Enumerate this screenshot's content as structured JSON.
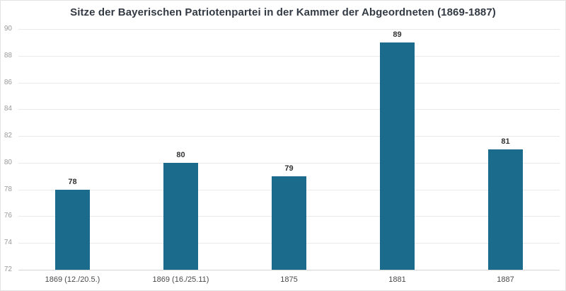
{
  "chart_data": {
    "type": "bar",
    "title": "Sitze der Bayerischen Patriotenpartei in der Kammer der Abgeordneten (1869-1887)",
    "categories": [
      "1869 (12./20.5.)",
      "1869 (16./25.11)",
      "1875",
      "1881",
      "1887"
    ],
    "values": [
      78,
      80,
      79,
      89,
      81
    ],
    "xlabel": "",
    "ylabel": "",
    "ylim": [
      72,
      90
    ],
    "yticks": [
      72,
      74,
      76,
      78,
      80,
      82,
      84,
      86,
      88,
      90
    ],
    "grid": true,
    "legend": "none",
    "bar_color": "#1a6b8c",
    "value_label_color": "#333333",
    "axis_label_color": "#989898",
    "category_label_color": "#4a4a4a"
  }
}
